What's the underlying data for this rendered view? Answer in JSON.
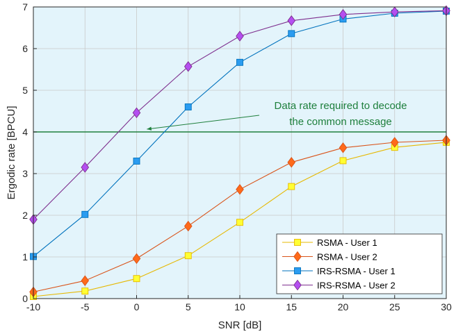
{
  "chart_data": {
    "type": "line",
    "xlabel": "SNR [dB]",
    "ylabel": "Ergodic rate [BPCU]",
    "x": [
      -10,
      -5,
      0,
      5,
      10,
      15,
      20,
      25,
      30
    ],
    "xlim": [
      -10,
      30
    ],
    "ylim": [
      0,
      7
    ],
    "xticks": [
      "-10",
      "-5",
      "0",
      "5",
      "10",
      "15",
      "20",
      "25",
      "30"
    ],
    "yticks": [
      "0",
      "1",
      "2",
      "3",
      "4",
      "5",
      "6",
      "7"
    ],
    "grid": true,
    "legend_position": "bottom-right",
    "background_color": "#e3f4fb",
    "series": [
      {
        "name": "RSMA - User 1",
        "color": "#e6b800",
        "fill": "#ffff33",
        "marker": "square",
        "values": [
          0.05,
          0.18,
          0.48,
          1.03,
          1.83,
          2.69,
          3.31,
          3.63,
          3.75
        ]
      },
      {
        "name": "RSMA - User 2",
        "color": "#d95319",
        "fill": "#ff6a1a",
        "marker": "diamond",
        "values": [
          0.16,
          0.43,
          0.96,
          1.74,
          2.62,
          3.27,
          3.62,
          3.75,
          3.8
        ]
      },
      {
        "name": "IRS-RSMA - User 1",
        "color": "#0072bd",
        "fill": "#2b9cf0",
        "marker": "square",
        "values": [
          1.01,
          2.02,
          3.3,
          4.6,
          5.67,
          6.36,
          6.71,
          6.85,
          6.9
        ]
      },
      {
        "name": "IRS-RSMA - User 2",
        "color": "#7e2f8e",
        "fill": "#b44ff0",
        "marker": "diamond",
        "values": [
          1.9,
          3.15,
          4.46,
          5.57,
          6.3,
          6.67,
          6.82,
          6.88,
          6.91
        ]
      }
    ],
    "reference_line": {
      "y": 4,
      "color": "#1e7f3c"
    },
    "annotation": {
      "lines": [
        "Data rate required to decode",
        "the common message"
      ],
      "color": "#1e7f3c",
      "arrow_target": {
        "x": 1,
        "y": 4
      }
    }
  }
}
